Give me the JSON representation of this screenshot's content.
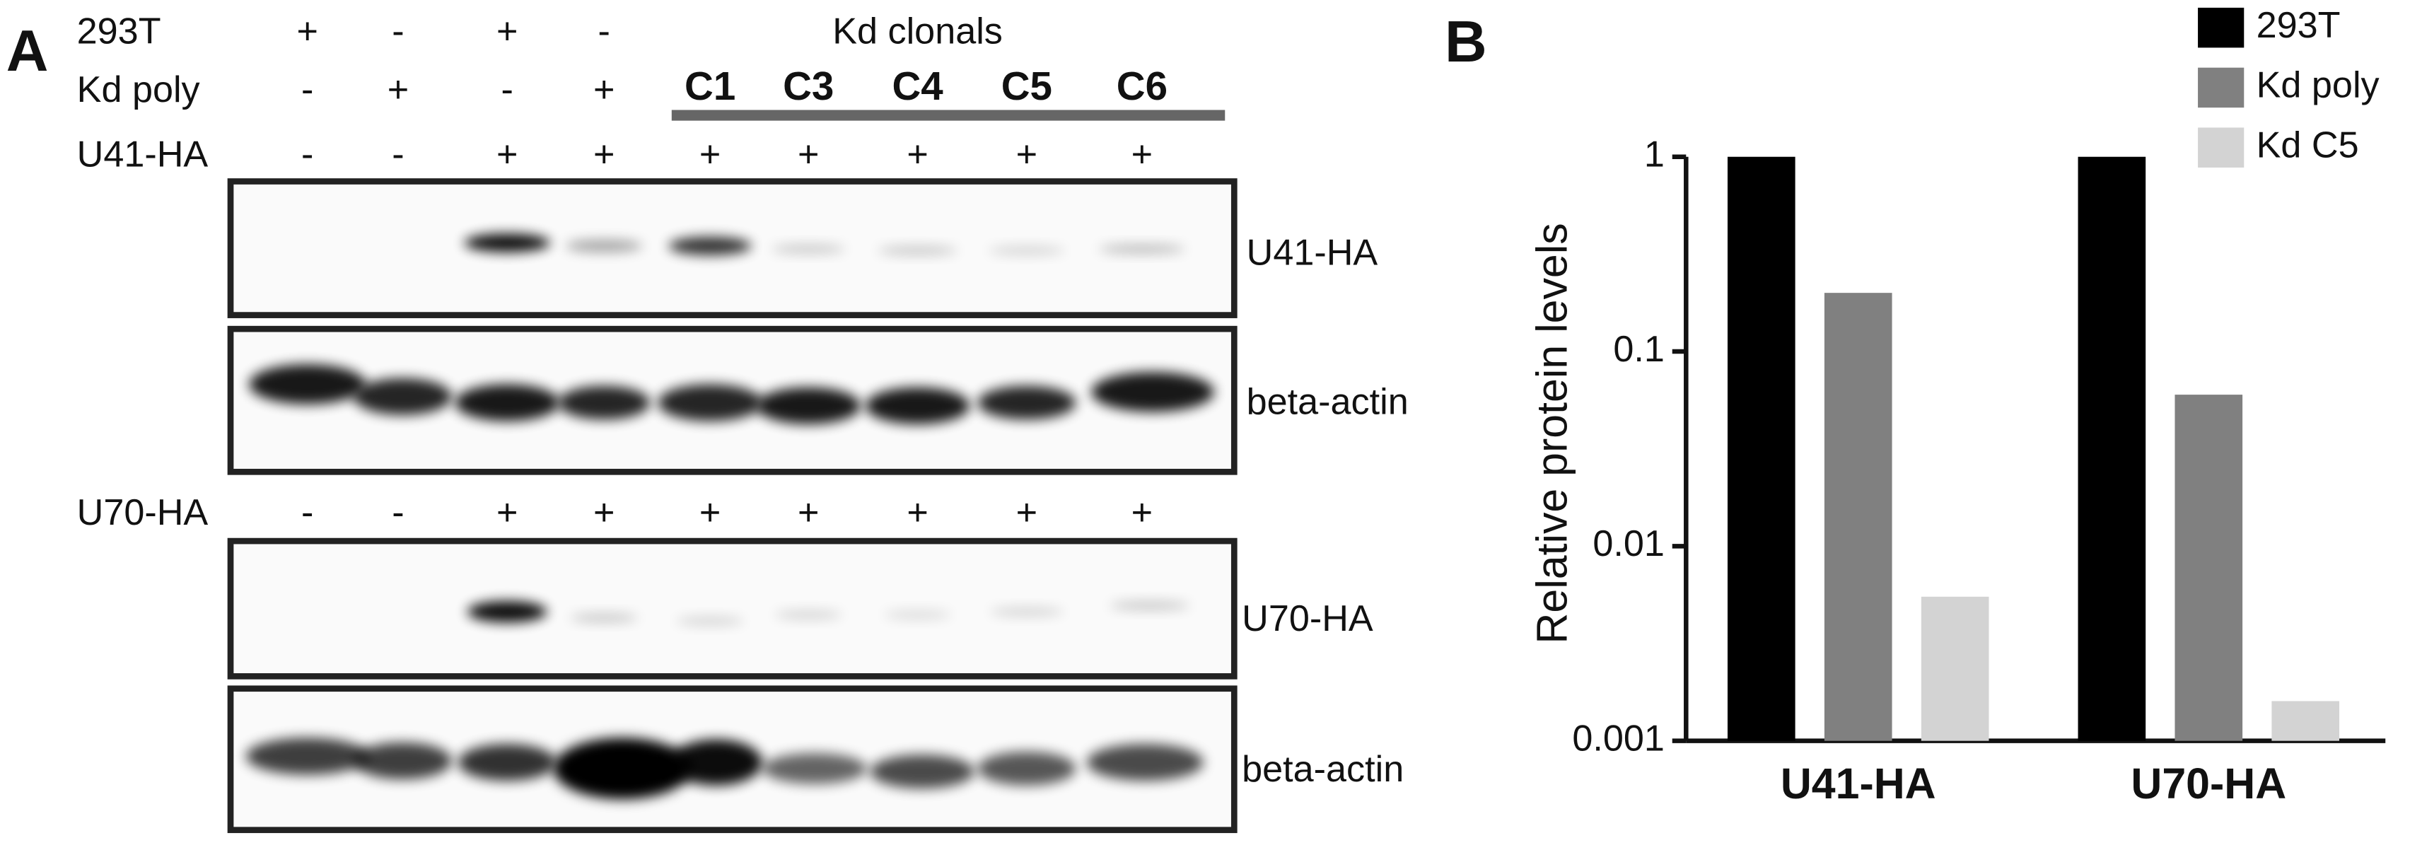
{
  "panel_a": {
    "label": "A",
    "rows": [
      {
        "label": "293T",
        "signs": [
          "+",
          "-",
          "+",
          "-"
        ]
      },
      {
        "label": "Kd poly",
        "signs": [
          "-",
          "+",
          "-",
          "+"
        ]
      },
      {
        "label": "U41-HA",
        "signs": [
          "-",
          "-",
          "+",
          "+",
          "+",
          "+",
          "+",
          "+",
          "+"
        ]
      },
      {
        "label": "U70-HA",
        "signs": [
          "-",
          "-",
          "+",
          "+",
          "+",
          "+",
          "+",
          "+",
          "+"
        ]
      }
    ],
    "group_label": "Kd clonals",
    "clones": [
      "C1",
      "C3",
      "C4",
      "C5",
      "C6"
    ],
    "blot_labels": [
      "U41-HA",
      "beta-actin",
      "U70-HA",
      "beta-actin"
    ]
  },
  "panel_b": {
    "label": "B"
  },
  "chart_data": {
    "type": "bar",
    "y_label": "Relative protein levels",
    "categories": [
      "U41-HA",
      "U70-HA"
    ],
    "series": [
      {
        "name": "293T",
        "color": "#000000",
        "values": [
          1,
          1
        ]
      },
      {
        "name": "Kd poly",
        "color": "#808080",
        "values": [
          0.2,
          0.06
        ]
      },
      {
        "name": "Kd C5",
        "color": "#d3d3d3",
        "values": [
          0.0055,
          0.0016
        ]
      }
    ],
    "log_scale": true,
    "ylim": [
      0.001,
      1
    ],
    "yticks": [
      0.001,
      0.01,
      0.1,
      1
    ],
    "legend": "top-right"
  }
}
